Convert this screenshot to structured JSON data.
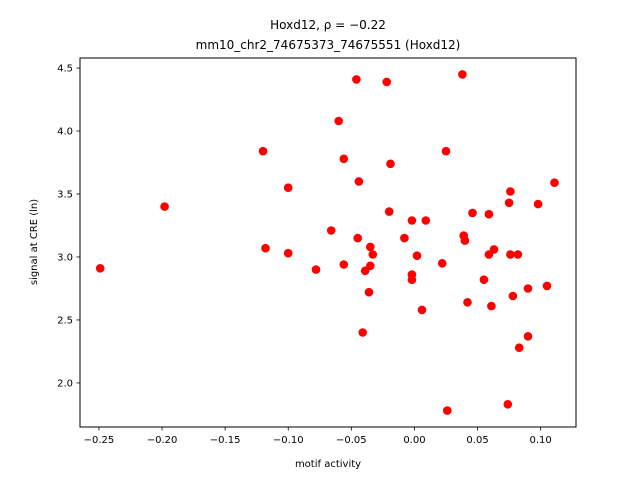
{
  "chart_data": {
    "type": "scatter",
    "title_line1": "Hoxd12, ρ = −0.22",
    "title_line2": "mm10_chr2_74675373_74675551 (Hoxd12)",
    "xlabel": "motif activity",
    "ylabel": "signal at CRE (ln)",
    "xlim": [
      -0.265,
      0.128
    ],
    "ylim": [
      1.65,
      4.58
    ],
    "xticks": [
      -0.25,
      -0.2,
      -0.15,
      -0.1,
      -0.05,
      0.0,
      0.05,
      0.1
    ],
    "xtick_labels": [
      "−0.25",
      "−0.20",
      "−0.15",
      "−0.10",
      "−0.05",
      "0.00",
      "0.05",
      "0.10"
    ],
    "yticks": [
      2.0,
      2.5,
      3.0,
      3.5,
      4.0,
      4.5
    ],
    "ytick_labels": [
      "2.0",
      "2.5",
      "3.0",
      "3.5",
      "4.0",
      "4.5"
    ],
    "grid": false,
    "marker_color": "#ff0000",
    "points": [
      [
        -0.249,
        2.91
      ],
      [
        -0.198,
        3.4
      ],
      [
        -0.12,
        3.84
      ],
      [
        -0.118,
        3.07
      ],
      [
        -0.1,
        3.55
      ],
      [
        -0.1,
        3.03
      ],
      [
        -0.078,
        2.9
      ],
      [
        -0.066,
        3.21
      ],
      [
        -0.06,
        4.08
      ],
      [
        -0.056,
        3.78
      ],
      [
        -0.056,
        2.94
      ],
      [
        -0.046,
        4.41
      ],
      [
        -0.045,
        3.15
      ],
      [
        -0.044,
        3.6
      ],
      [
        -0.041,
        2.4
      ],
      [
        -0.039,
        2.89
      ],
      [
        -0.036,
        2.72
      ],
      [
        -0.035,
        2.93
      ],
      [
        -0.035,
        3.08
      ],
      [
        -0.033,
        3.02
      ],
      [
        -0.022,
        4.39
      ],
      [
        -0.02,
        3.36
      ],
      [
        -0.019,
        3.74
      ],
      [
        -0.008,
        3.15
      ],
      [
        -0.002,
        3.29
      ],
      [
        -0.002,
        2.86
      ],
      [
        -0.002,
        2.82
      ],
      [
        0.002,
        3.01
      ],
      [
        0.006,
        2.58
      ],
      [
        0.009,
        3.29
      ],
      [
        0.022,
        2.95
      ],
      [
        0.025,
        3.84
      ],
      [
        0.026,
        1.78
      ],
      [
        0.038,
        4.45
      ],
      [
        0.039,
        3.17
      ],
      [
        0.04,
        3.13
      ],
      [
        0.042,
        2.64
      ],
      [
        0.046,
        3.35
      ],
      [
        0.055,
        2.82
      ],
      [
        0.059,
        3.02
      ],
      [
        0.059,
        3.34
      ],
      [
        0.061,
        2.61
      ],
      [
        0.063,
        3.06
      ],
      [
        0.074,
        1.83
      ],
      [
        0.075,
        3.43
      ],
      [
        0.076,
        3.52
      ],
      [
        0.076,
        3.02
      ],
      [
        0.078,
        2.69
      ],
      [
        0.082,
        3.02
      ],
      [
        0.083,
        2.28
      ],
      [
        0.09,
        2.37
      ],
      [
        0.09,
        2.75
      ],
      [
        0.098,
        3.42
      ],
      [
        0.105,
        2.77
      ],
      [
        0.111,
        3.59
      ]
    ]
  }
}
